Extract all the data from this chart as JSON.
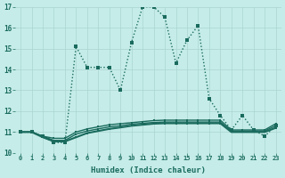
{
  "xlabel": "Humidex (Indice chaleur)",
  "background_color": "#c5ece8",
  "grid_color": "#aad5d0",
  "line_color": "#1a6b5e",
  "xlim": [
    -0.5,
    23.5
  ],
  "ylim": [
    10,
    17
  ],
  "yticks": [
    10,
    11,
    12,
    13,
    14,
    15,
    16,
    17
  ],
  "xticks": [
    0,
    1,
    2,
    3,
    4,
    5,
    6,
    7,
    8,
    9,
    10,
    11,
    12,
    13,
    14,
    15,
    16,
    17,
    18,
    19,
    20,
    21,
    22,
    23
  ],
  "series": [
    {
      "y": [
        11.0,
        11.0,
        10.8,
        10.5,
        10.5,
        15.1,
        14.1,
        14.1,
        14.1,
        13.0,
        15.3,
        17.0,
        17.0,
        16.5,
        14.3,
        15.4,
        16.1,
        12.6,
        11.8,
        11.1,
        11.8,
        11.1,
        10.8,
        11.3
      ],
      "linestyle": "dotted",
      "linewidth": 1.0,
      "markersize": 2.5
    },
    {
      "y": [
        11.0,
        11.0,
        10.8,
        10.7,
        10.7,
        11.0,
        11.15,
        11.25,
        11.35,
        11.4,
        11.45,
        11.5,
        11.55,
        11.57,
        11.57,
        11.57,
        11.57,
        11.57,
        11.57,
        11.1,
        11.1,
        11.1,
        11.1,
        11.4
      ],
      "linestyle": "solid",
      "linewidth": 1.0,
      "markersize": 2.0
    },
    {
      "y": [
        11.0,
        11.0,
        10.8,
        10.6,
        10.6,
        10.9,
        11.05,
        11.15,
        11.25,
        11.3,
        11.38,
        11.42,
        11.46,
        11.48,
        11.48,
        11.48,
        11.48,
        11.48,
        11.48,
        11.05,
        11.05,
        11.05,
        11.05,
        11.3
      ],
      "linestyle": "solid",
      "linewidth": 1.0,
      "markersize": 2.0
    },
    {
      "y": [
        11.0,
        11.0,
        10.75,
        10.55,
        10.55,
        10.75,
        10.95,
        11.05,
        11.15,
        11.22,
        11.3,
        11.35,
        11.4,
        11.42,
        11.42,
        11.42,
        11.42,
        11.42,
        11.42,
        11.0,
        11.0,
        11.0,
        11.0,
        11.2
      ],
      "linestyle": "solid",
      "linewidth": 1.5,
      "markersize": 2.0
    }
  ]
}
